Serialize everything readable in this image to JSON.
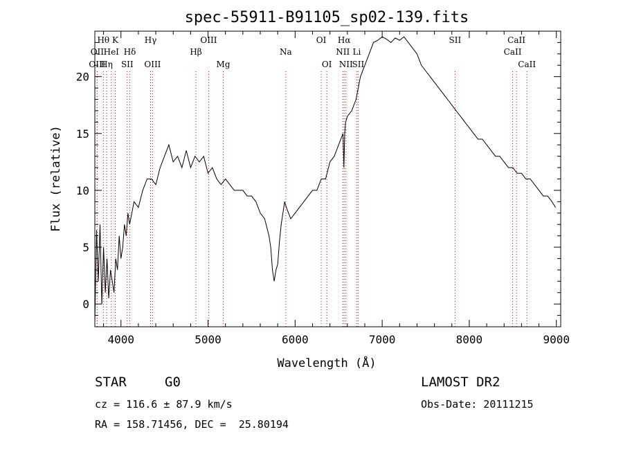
{
  "chart_data": {
    "type": "line",
    "title": "spec-55911-B91105_sp02-139.fits",
    "xlabel": "Wavelength (Å)",
    "ylabel": "Flux (relative)",
    "xlim": [
      3700,
      9050
    ],
    "ylim": [
      -2,
      24
    ],
    "xticks": [
      4000,
      5000,
      6000,
      7000,
      8000,
      9000
    ],
    "yticks": [
      0,
      5,
      10,
      15,
      20
    ],
    "grid": false,
    "series": [
      {
        "x": [
          3700,
          3720,
          3740,
          3760,
          3780,
          3800,
          3820,
          3840,
          3860,
          3880,
          3900,
          3920,
          3940,
          3960,
          3980,
          4000,
          4020,
          4040,
          4060,
          4080,
          4100,
          4150,
          4200,
          4250,
          4300,
          4350,
          4400,
          4450,
          4500,
          4550,
          4600,
          4650,
          4700,
          4750,
          4800,
          4850,
          4900,
          4950,
          5000,
          5050,
          5100,
          5150,
          5200,
          5250,
          5300,
          5350,
          5400,
          5450,
          5500,
          5550,
          5600,
          5650,
          5700,
          5720,
          5740,
          5760,
          5780,
          5800,
          5820,
          5840,
          5860,
          5880,
          5900,
          5950,
          6000,
          6050,
          6100,
          6150,
          6200,
          6250,
          6300,
          6350,
          6400,
          6450,
          6500,
          6550,
          6560,
          6570,
          6580,
          6600,
          6650,
          6700,
          6750,
          6800,
          6850,
          6900,
          6950,
          7000,
          7050,
          7100,
          7150,
          7200,
          7250,
          7300,
          7350,
          7400,
          7450,
          7500,
          7550,
          7600,
          7650,
          7700,
          7750,
          7800,
          7850,
          7900,
          7950,
          8000,
          8050,
          8100,
          8150,
          8200,
          8250,
          8300,
          8350,
          8400,
          8450,
          8500,
          8550,
          8600,
          8650,
          8700,
          8750,
          8800,
          8850,
          8900,
          8950,
          8990
        ],
        "y": [
          -1.5,
          6.5,
          2,
          7,
          0,
          5,
          1,
          4,
          0.5,
          3,
          2,
          1,
          4,
          3,
          6,
          4,
          5,
          7,
          6,
          8,
          7,
          9,
          8.5,
          10,
          11,
          11,
          10.5,
          12,
          13,
          14,
          12.5,
          13,
          12,
          13.5,
          12,
          13,
          12.5,
          13,
          11.5,
          12,
          11,
          10.5,
          11,
          10.5,
          10,
          10,
          10,
          9.5,
          9.5,
          9,
          8,
          7.5,
          6,
          5,
          3,
          2,
          3,
          3.5,
          5.5,
          7,
          8,
          9,
          8.5,
          7.5,
          8,
          8.5,
          9,
          9.5,
          10,
          10,
          11,
          11,
          12.5,
          13,
          14,
          15,
          12,
          15,
          16,
          16.5,
          17,
          18,
          20,
          21,
          22,
          23,
          23.2,
          23.5,
          23.3,
          23,
          23.4,
          23.2,
          23.5,
          23,
          22.5,
          22,
          21,
          20.5,
          20,
          19.5,
          19,
          18.5,
          18,
          17.5,
          17,
          16.5,
          16,
          15.5,
          15,
          14.5,
          14.5,
          14,
          13.5,
          13,
          13,
          12.5,
          12,
          12,
          11.5,
          11.5,
          11,
          11,
          10.5,
          10,
          9.5,
          9.5,
          9,
          8.5
        ]
      }
    ],
    "line_markers": [
      {
        "label": "Hθ",
        "wave": 3798,
        "row": 1
      },
      {
        "label": "OII",
        "wave": 3727,
        "row": 2
      },
      {
        "label": "OIII",
        "wave": 3727,
        "row": 3
      },
      {
        "label": "K",
        "wave": 3934,
        "row": 1
      },
      {
        "label": "HeI",
        "wave": 3889,
        "row": 2
      },
      {
        "label": "Hη",
        "wave": 3835,
        "row": 3
      },
      {
        "label": "Hδ",
        "wave": 4102,
        "row": 2
      },
      {
        "label": "SII",
        "wave": 4072,
        "row": 3
      },
      {
        "label": "Hγ",
        "wave": 4340,
        "row": 1
      },
      {
        "label": "OIII",
        "wave": 4363,
        "row": 3
      },
      {
        "label": "OIII",
        "wave": 5007,
        "row": 1
      },
      {
        "label": "Hβ",
        "wave": 4861,
        "row": 2
      },
      {
        "label": "Mg",
        "wave": 5175,
        "row": 3
      },
      {
        "label": "Na",
        "wave": 5893,
        "row": 2
      },
      {
        "label": "OI",
        "wave": 6300,
        "row": 1
      },
      {
        "label": "OI",
        "wave": 6364,
        "row": 3
      },
      {
        "label": "Hα",
        "wave": 6563,
        "row": 1
      },
      {
        "label": "NII",
        "wave": 6548,
        "row": 2
      },
      {
        "label": "Li",
        "wave": 6708,
        "row": 2
      },
      {
        "label": "NII",
        "wave": 6584,
        "row": 3
      },
      {
        "label": "SII",
        "wave": 6724,
        "row": 3
      },
      {
        "label": "SII",
        "wave": 7837,
        "row": 1
      },
      {
        "label": "CaII",
        "wave": 8542,
        "row": 1
      },
      {
        "label": "CaII",
        "wave": 8498,
        "row": 2
      },
      {
        "label": "CaII",
        "wave": 8662,
        "row": 3
      }
    ]
  },
  "info": {
    "class": "STAR",
    "subclass": "G0",
    "survey": "LAMOST DR2",
    "cz": "cz = 116.6 ± 87.9 km/s",
    "obs_date": "Obs-Date: 20111215",
    "coords": "RA = 158.71456, DEC =  25.80194"
  }
}
